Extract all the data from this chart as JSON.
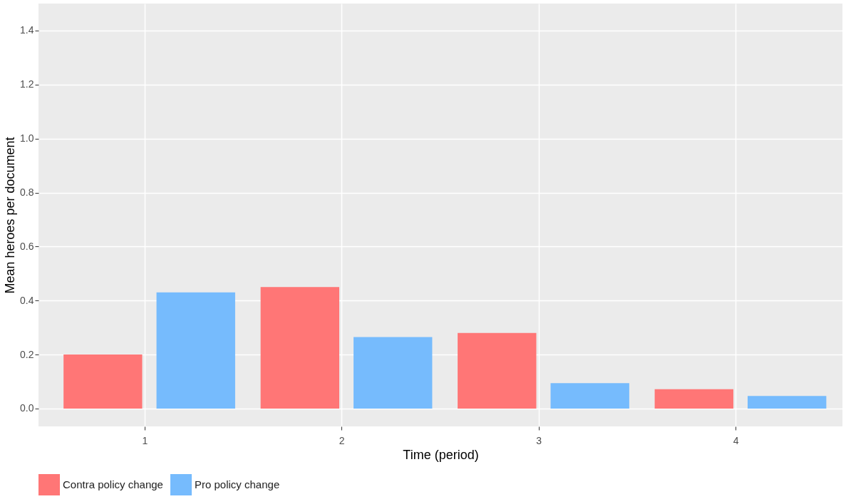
{
  "chart_data": {
    "type": "bar",
    "xlabel": "Time (period)",
    "ylabel": "Mean heroes per document",
    "categories": [
      "1",
      "2",
      "3",
      "4"
    ],
    "series": [
      {
        "name": "Contra policy change",
        "color": "#ff7676",
        "values": [
          0.2,
          0.45,
          0.28,
          0.072
        ]
      },
      {
        "name": "Pro policy change",
        "color": "#76bbfd",
        "values": [
          0.43,
          0.265,
          0.094,
          0.047
        ]
      }
    ],
    "ylim": [
      -0.066,
      1.5
    ],
    "yticks": [
      {
        "value": 0,
        "label": "0.0"
      },
      0.2,
      0.4,
      0.6,
      0.8,
      {
        "value": 1,
        "label": "1.0"
      },
      1.2,
      1.4
    ],
    "grid": true,
    "legend": "bottom"
  }
}
